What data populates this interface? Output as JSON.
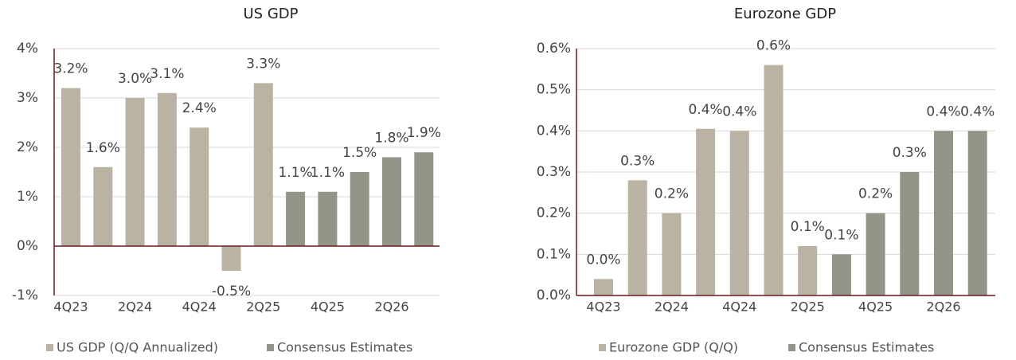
{
  "chart_data": [
    {
      "type": "bar",
      "title": "US GDP",
      "categories": [
        "4Q23",
        null,
        "2Q24",
        null,
        "4Q24",
        null,
        "2Q25",
        null,
        "4Q25",
        null,
        "2Q26",
        null
      ],
      "series": [
        {
          "name": "US GDP (Q/Q Annualized)",
          "color": "#bab3a3",
          "values": [
            3.2,
            1.6,
            3.0,
            3.1,
            2.4,
            -0.5,
            3.3,
            null,
            null,
            null,
            null,
            null
          ],
          "value_labels": [
            "3.2%",
            "1.6%",
            "3.0%",
            "3.1%",
            "2.4%",
            "-0.5%",
            "3.3%",
            null,
            null,
            null,
            null,
            null
          ]
        },
        {
          "name": "Consensus Estimates",
          "color": "#949489",
          "values": [
            null,
            null,
            null,
            null,
            null,
            null,
            null,
            1.1,
            1.1,
            1.5,
            1.8,
            1.9
          ],
          "value_labels": [
            null,
            null,
            null,
            null,
            null,
            null,
            null,
            "1.1%",
            "1.1%",
            "1.5%",
            "1.8%",
            "1.9%"
          ]
        }
      ],
      "ylim": [
        -1,
        4
      ],
      "yticks": [
        {
          "value": -1,
          "label": "-1%"
        },
        {
          "value": 0,
          "label": "0%"
        },
        {
          "value": 1,
          "label": "1%"
        },
        {
          "value": 2,
          "label": "2%"
        },
        {
          "value": 3,
          "label": "3%"
        },
        {
          "value": 4,
          "label": "4%"
        }
      ],
      "grid": true
    },
    {
      "type": "bar",
      "title": "Eurozone GDP",
      "categories": [
        "4Q23",
        null,
        "2Q24",
        null,
        "4Q24",
        null,
        "2Q25",
        null,
        "4Q25",
        null,
        "2Q26",
        null
      ],
      "series": [
        {
          "name": "Eurozone GDP (Q/Q)",
          "color": "#bab3a3",
          "values": [
            0.04,
            0.28,
            0.2,
            0.405,
            0.4,
            0.56,
            0.12,
            null,
            null,
            null,
            null,
            null
          ],
          "value_labels": [
            "0.0%",
            "0.3%",
            "0.2%",
            "0.4%",
            "0.4%",
            "0.6%",
            "0.1%",
            null,
            null,
            null,
            null,
            null
          ]
        },
        {
          "name": "Consensus Estimates",
          "color": "#949489",
          "values": [
            null,
            null,
            null,
            null,
            null,
            null,
            null,
            0.1,
            0.2,
            0.3,
            0.4,
            0.4
          ],
          "value_labels": [
            null,
            null,
            null,
            null,
            null,
            null,
            null,
            "0.1%",
            "0.2%",
            "0.3%",
            "0.4%",
            "0.4%"
          ]
        }
      ],
      "ylim": [
        0,
        0.6
      ],
      "yticks": [
        {
          "value": 0,
          "label": "0.0%"
        },
        {
          "value": 0.1,
          "label": "0.1%"
        },
        {
          "value": 0.2,
          "label": "0.2%"
        },
        {
          "value": 0.3,
          "label": "0.3%"
        },
        {
          "value": 0.4,
          "label": "0.4%"
        },
        {
          "value": 0.5,
          "label": "0.5%"
        },
        {
          "value": 0.6,
          "label": "0.6%"
        }
      ],
      "grid": true
    }
  ]
}
